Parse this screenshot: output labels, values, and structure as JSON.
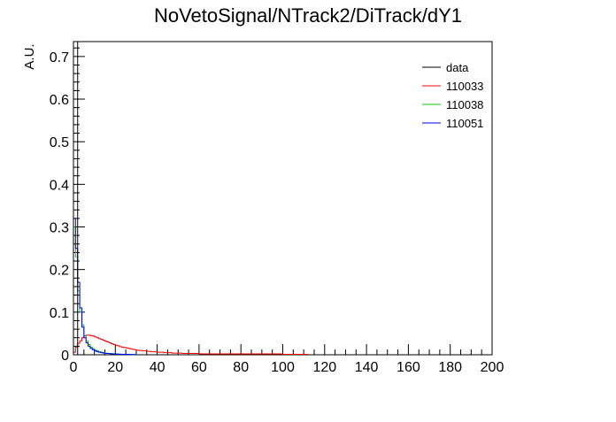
{
  "chart_data": {
    "type": "line",
    "title": "NoVetoSignal/NTrack2/DiTrack/dY1",
    "xlabel": "",
    "ylabel": "A.U.",
    "xlim": [
      0,
      200
    ],
    "ylim": [
      0,
      0.735
    ],
    "x_ticks": [
      0,
      20,
      40,
      60,
      80,
      100,
      120,
      140,
      160,
      180,
      200
    ],
    "y_ticks": [
      0,
      0.1,
      0.2,
      0.3,
      0.4,
      0.5,
      0.6,
      0.7
    ],
    "bin_width": 1,
    "grid": false,
    "legend_position": "top-right",
    "series": [
      {
        "name": "data",
        "color": "#000000",
        "style": "step",
        "values": [
          0.735,
          0.735
        ]
      },
      {
        "name": "110033",
        "color": "#ff0000",
        "style": "step",
        "values": [
          0.006,
          0.018,
          0.027,
          0.033,
          0.04,
          0.044,
          0.046,
          0.046,
          0.045,
          0.044,
          0.042,
          0.04,
          0.038,
          0.036,
          0.034,
          0.032,
          0.03,
          0.028,
          0.026,
          0.024,
          0.022,
          0.021,
          0.019,
          0.018,
          0.017,
          0.016,
          0.015,
          0.014,
          0.013,
          0.012,
          0.011,
          0.01,
          0.01,
          0.009,
          0.009,
          0.008,
          0.008,
          0.007,
          0.007,
          0.007,
          0.006,
          0.006,
          0.006,
          0.005,
          0.005,
          0.005,
          0.005,
          0.004,
          0.004,
          0.004,
          0.004,
          0.004,
          0.003,
          0.003,
          0.003,
          0.003,
          0.003,
          0.003,
          0.003,
          0.003,
          0.002,
          0.002,
          0.002,
          0.002,
          0.002,
          0.002,
          0.002,
          0.002,
          0.002,
          0.002,
          0.002,
          0.002,
          0.002,
          0.002,
          0.002,
          0.002,
          0.002,
          0.002,
          0.002,
          0.002,
          0.002,
          0.002,
          0.002,
          0.002,
          0.002,
          0.002,
          0.002,
          0.002,
          0.002,
          0.002,
          0.002,
          0.002,
          0.002,
          0.002,
          0.002,
          0.002,
          0.002,
          0.002,
          0.002,
          0.002,
          0.001,
          0.001,
          0.001,
          0.001,
          0.001,
          0.001,
          0.001,
          0.001,
          0.001,
          0.001,
          0.001,
          0.001
        ]
      },
      {
        "name": "110038",
        "color": "#00cc00",
        "style": "step",
        "values": [
          0.3,
          0.23,
          0.15,
          0.1,
          0.07,
          0.045,
          0.032,
          0.024,
          0.018,
          0.014,
          0.011,
          0.009,
          0.007,
          0.006,
          0.005,
          0.004,
          0.0035,
          0.003,
          0.0025,
          0.002,
          0.002,
          0.0015,
          0.0015,
          0.001,
          0.001,
          0.001,
          0.001,
          0.0008,
          0.0008,
          0.0006
        ]
      },
      {
        "name": "110051",
        "color": "#0000ff",
        "style": "step",
        "values": [
          0.32,
          0.25,
          0.17,
          0.11,
          0.065,
          0.04,
          0.028,
          0.02,
          0.015,
          0.012,
          0.009,
          0.007,
          0.006,
          0.005,
          0.004,
          0.0035,
          0.003,
          0.0025,
          0.002,
          0.002,
          0.0015,
          0.0015,
          0.001,
          0.001,
          0.001,
          0.001,
          0.0008,
          0.0008,
          0.0006,
          0.0006
        ]
      }
    ]
  }
}
